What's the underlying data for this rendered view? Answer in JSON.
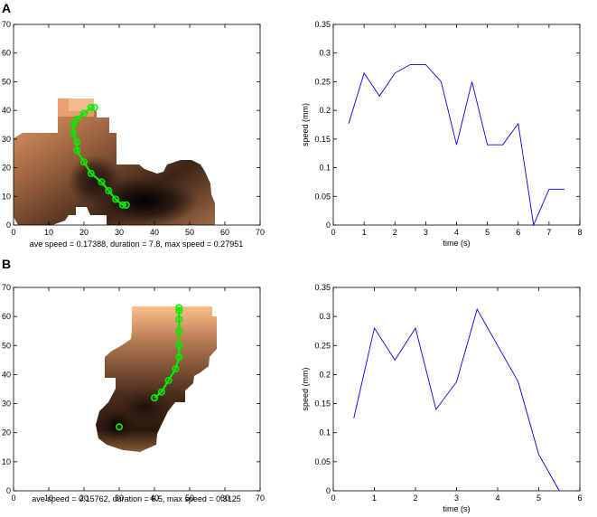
{
  "panels": [
    {
      "label": "A",
      "caption": "ave speed = 0.17388, duration = 7.8, max speed = 0.27951"
    },
    {
      "label": "B",
      "caption": "ave speed = 0.15762, duration = 6.5, max speed = 0.3125"
    }
  ],
  "colors": {
    "line": "#0000ee",
    "track": "#00ee00",
    "axis": "#000000"
  },
  "chart_data": [
    {
      "type": "heatmap",
      "panel": "A",
      "title": "",
      "xlabel": "",
      "ylabel": "",
      "xlim": [
        0,
        70
      ],
      "ylim": [
        0,
        70
      ],
      "xticks": [
        0,
        10,
        20,
        30,
        40,
        50,
        60,
        70
      ],
      "yticks": [
        0,
        10,
        20,
        30,
        40,
        50,
        60,
        70
      ],
      "track": {
        "x": [
          23,
          22,
          20,
          18,
          17,
          17,
          18,
          18,
          20,
          22,
          25,
          27,
          29,
          31,
          32
        ],
        "y": [
          41,
          41,
          39,
          37,
          35,
          32,
          29,
          26,
          22,
          18,
          15,
          12,
          9,
          7,
          7
        ]
      }
    },
    {
      "type": "line",
      "panel": "A",
      "title": "",
      "xlabel": "time (s)",
      "ylabel": "speed (mm)",
      "xlim": [
        0,
        8
      ],
      "ylim": [
        0,
        0.35
      ],
      "xticks": [
        0,
        1,
        2,
        3,
        4,
        5,
        6,
        7,
        8
      ],
      "yticks": [
        0,
        0.05,
        0.1,
        0.15,
        0.2,
        0.25,
        0.3,
        0.35
      ],
      "x": [
        0.5,
        1,
        1.5,
        2,
        2.5,
        3,
        3.5,
        4,
        4.5,
        5,
        5.5,
        6,
        6.5,
        7,
        7.5
      ],
      "y": [
        0.177,
        0.265,
        0.225,
        0.265,
        0.28,
        0.28,
        0.25,
        0.14,
        0.25,
        0.14,
        0.14,
        0.177,
        0.0,
        0.0625,
        0.0625
      ]
    },
    {
      "type": "heatmap",
      "panel": "B",
      "title": "",
      "xlabel": "",
      "ylabel": "",
      "xlim": [
        0,
        70
      ],
      "ylim": [
        0,
        70
      ],
      "xticks": [
        0,
        10,
        20,
        30,
        40,
        50,
        60,
        70
      ],
      "yticks": [
        0,
        10,
        20,
        30,
        40,
        50,
        60,
        70
      ],
      "track": {
        "x": [
          47,
          47,
          47,
          47,
          47,
          47,
          46,
          44,
          42,
          40,
          40
        ],
        "y": [
          63,
          62,
          59,
          55,
          50,
          46,
          42,
          38,
          34,
          32,
          32
        ]
      },
      "extra_point": {
        "x": 30,
        "y": 22
      }
    },
    {
      "type": "line",
      "panel": "B",
      "title": "",
      "xlabel": "time (s)",
      "ylabel": "speed (mm)",
      "xlim": [
        0,
        6
      ],
      "ylim": [
        0,
        0.35
      ],
      "xticks": [
        0,
        1,
        2,
        3,
        4,
        5,
        6
      ],
      "yticks": [
        0,
        0.05,
        0.1,
        0.15,
        0.2,
        0.25,
        0.3,
        0.35
      ],
      "x": [
        0.5,
        1,
        1.5,
        2,
        2.5,
        3,
        3.5,
        4,
        4.5,
        5,
        5.5
      ],
      "y": [
        0.125,
        0.28,
        0.225,
        0.28,
        0.14,
        0.1875,
        0.3125,
        0.25,
        0.1875,
        0.0625,
        0.0
      ]
    }
  ]
}
